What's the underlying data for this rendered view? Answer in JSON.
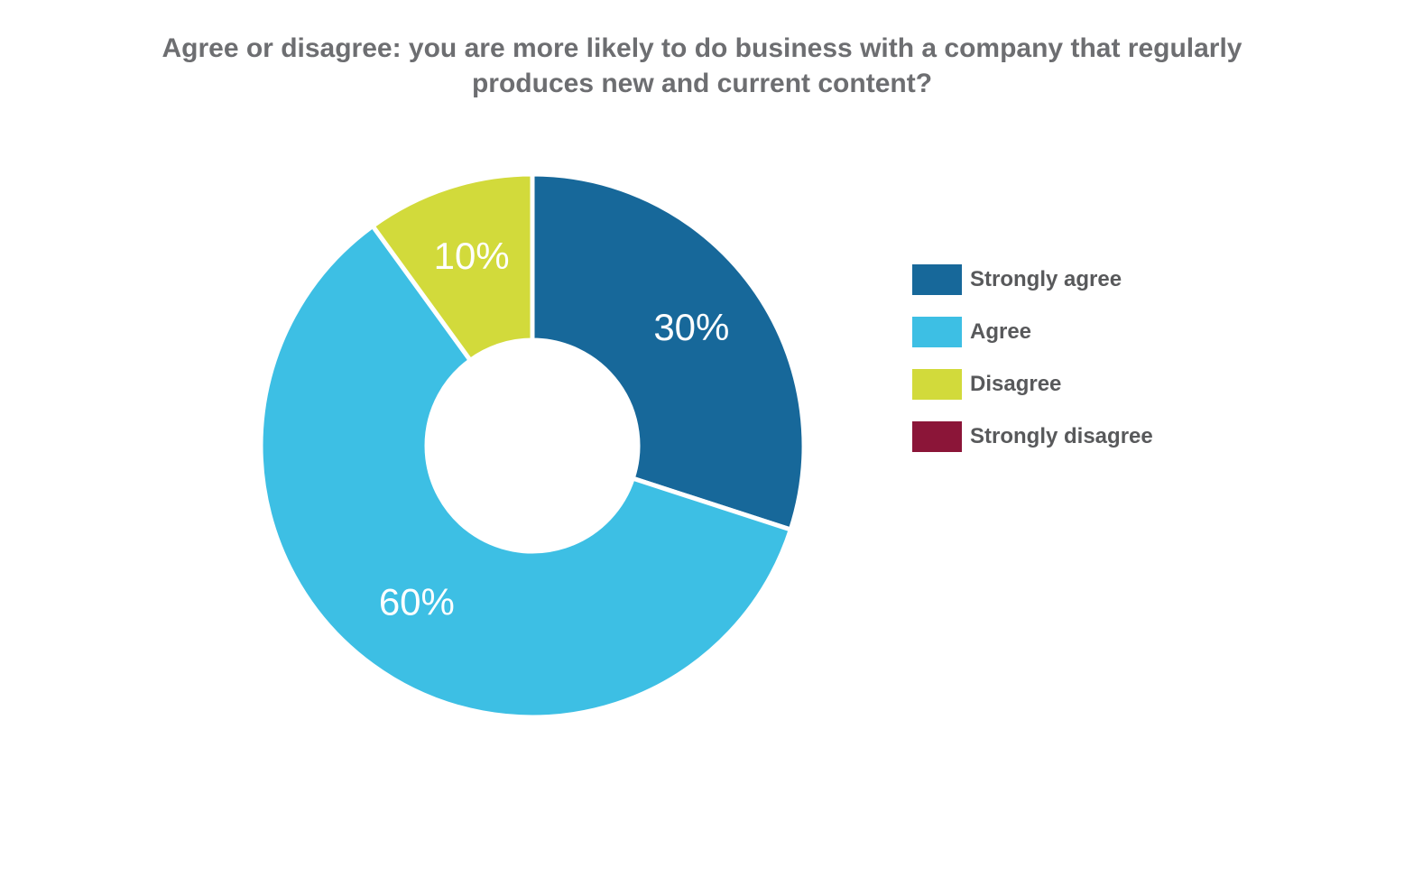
{
  "chart_data": {
    "type": "pie",
    "donut": true,
    "title_lines": [
      "Agree or disagree: you are more likely to do business with a company that regularly",
      "produces new and current content?"
    ],
    "categories": [
      "Strongly agree",
      "Agree",
      "Disagree",
      "Strongly disagree"
    ],
    "values": [
      30,
      60,
      10,
      0
    ],
    "labels": [
      "30%",
      "60%",
      "10%",
      ""
    ],
    "colors": [
      "#17689a",
      "#3dbfe4",
      "#d2da3b",
      "#8b1538"
    ],
    "legend_position": "right"
  }
}
